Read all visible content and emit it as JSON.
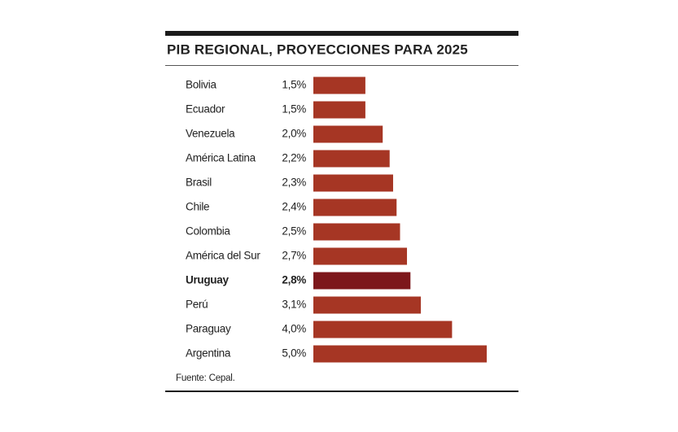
{
  "chart_data": {
    "type": "bar",
    "orientation": "horizontal",
    "title": "PIB REGIONAL, PROYECCIONES PARA 2025",
    "categories": [
      "Bolivia",
      "Ecuador",
      "Venezuela",
      "América Latina",
      "Brasil",
      "Chile",
      "Colombia",
      "América del Sur",
      "Uruguay",
      "Perú",
      "Paraguay",
      "Argentina"
    ],
    "values": [
      1.5,
      1.5,
      2.0,
      2.2,
      2.3,
      2.4,
      2.5,
      2.7,
      2.8,
      3.1,
      4.0,
      5.0
    ],
    "value_labels": [
      "1,5%",
      "1,5%",
      "2,0%",
      "2,2%",
      "2,3%",
      "2,4%",
      "2,5%",
      "2,7%",
      "2,8%",
      "3,1%",
      "4,0%",
      "5,0%"
    ],
    "colors": [
      "#a63624",
      "#a63624",
      "#a63624",
      "#a63624",
      "#a63624",
      "#a63624",
      "#a63624",
      "#a63624",
      "#7d171b",
      "#a63624",
      "#a63624",
      "#a63624"
    ],
    "emphasis_color": "#7d171b",
    "source": "Fuente: Cepal."
  }
}
